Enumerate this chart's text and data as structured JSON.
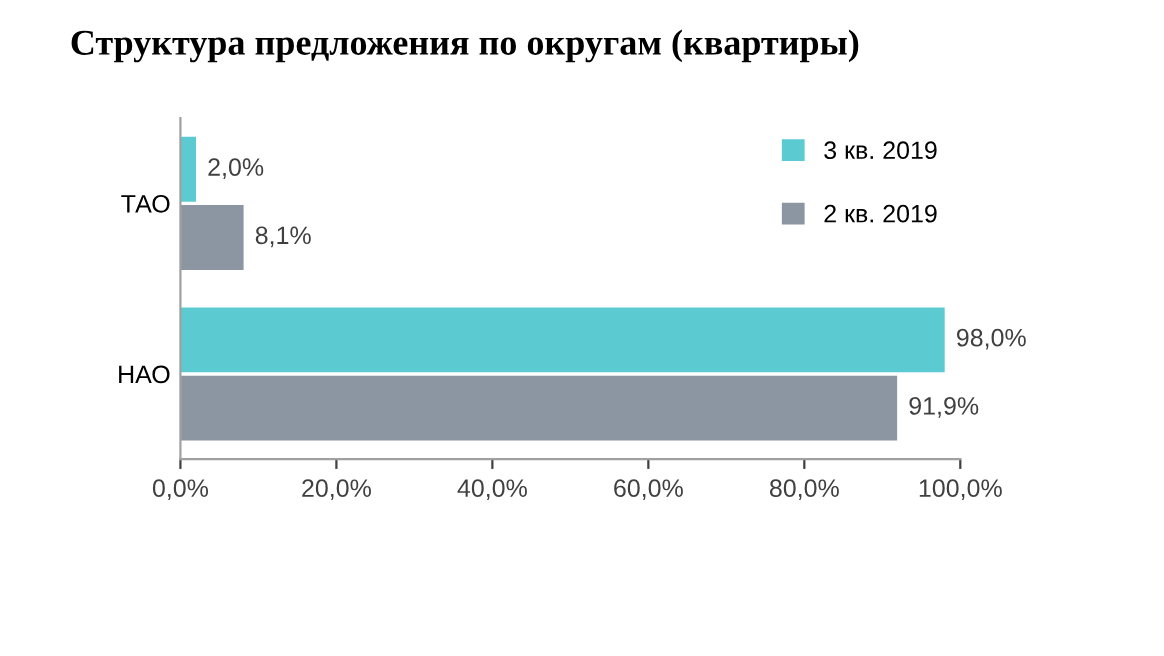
{
  "chart_data": {
    "type": "bar",
    "orientation": "horizontal",
    "title": "Структура предложения по округам (квартиры)",
    "categories": [
      "ТАО",
      "НАО"
    ],
    "series": [
      {
        "name": "3 кв. 2019",
        "color": "#5ccbd1",
        "values": [
          2.0,
          98.0
        ],
        "value_labels": [
          "2,0%",
          "98,0%"
        ]
      },
      {
        "name": "2 кв. 2019",
        "color": "#8c96a2",
        "values": [
          8.1,
          91.9
        ],
        "value_labels": [
          "8,1%",
          "91,9%"
        ]
      }
    ],
    "xlim": [
      0,
      100
    ],
    "xticks": [
      {
        "value": 0,
        "label": "0,0%"
      },
      {
        "value": 20,
        "label": "20,0%"
      },
      {
        "value": 40,
        "label": "40,0%"
      },
      {
        "value": 60,
        "label": "60,0%"
      },
      {
        "value": 80,
        "label": "80,0%"
      },
      {
        "value": 100,
        "label": "100,0%"
      }
    ],
    "grid": false,
    "legend": "top right"
  }
}
